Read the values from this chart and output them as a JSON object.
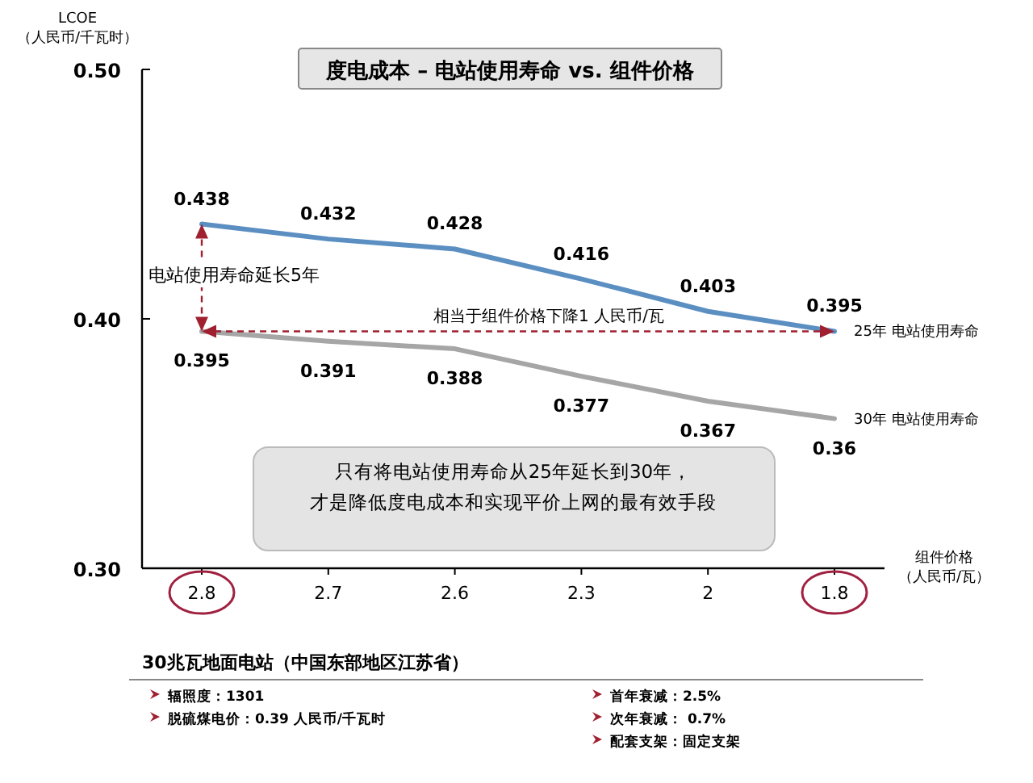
{
  "chart_data": {
    "type": "line",
    "title": "度电成本 – 电站使用寿命 vs. 组件价格",
    "ylabel": "LCOE（人民币/千瓦时）",
    "xlabel": "组件价格（人民币/瓦）",
    "categories": [
      "2.8",
      "2.7",
      "2.6",
      "2.3",
      "2",
      "1.8"
    ],
    "series": [
      {
        "name": "25年 电站使用寿命",
        "color": "#5b8fc2",
        "values": [
          0.438,
          0.432,
          0.428,
          0.416,
          0.403,
          0.395
        ]
      },
      {
        "name": "30年 电站使用寿命",
        "color": "#a6a6a6",
        "values": [
          0.395,
          0.391,
          0.388,
          0.377,
          0.367,
          0.36
        ]
      }
    ],
    "ylim": [
      0.3,
      0.5
    ],
    "yticks": [
      {
        "value": 0.3,
        "label": "0.30"
      },
      {
        "value": 0.4,
        "label": "0.40"
      },
      {
        "value": 0.5,
        "label": "0.50"
      }
    ],
    "data_labels": true,
    "marker": "none",
    "line_style": "solid",
    "ref_lines": [
      {
        "axis": "y",
        "value": 0.395,
        "label": "相当于组件价格下降1 人民币/瓦",
        "color": "#a02030",
        "line_style": "dashed"
      }
    ],
    "annotations": [
      "电站使用寿命延长5年",
      "只有将电站使用寿命从25年延长到30年，",
      "才是降低度电成本和实现平价上网的最有效手段",
      "30兆瓦地面电站（中国东部地区江苏省）",
      "辐照度：1301",
      "脱硫煤电价：0.39 人民币/千瓦时",
      "首年衰减：2.5%",
      "次年衰减： 0.7%",
      "配套支架：固定支架"
    ]
  }
}
